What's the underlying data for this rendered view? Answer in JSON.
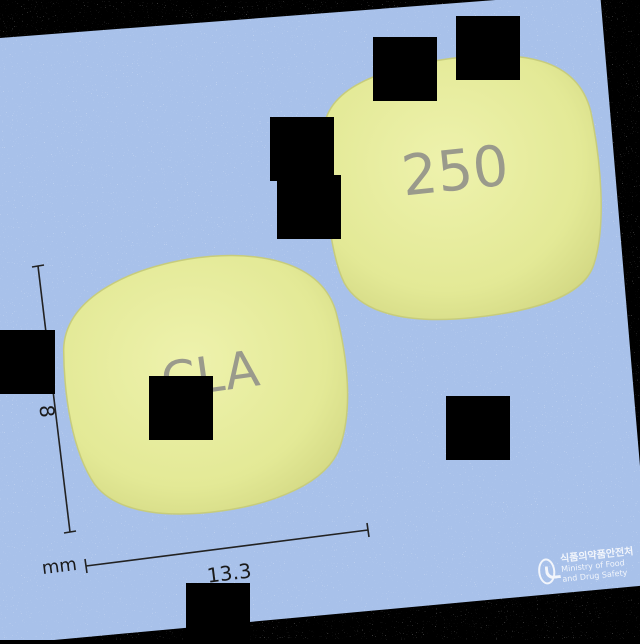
{
  "pill": {
    "front_imprint": "CLA",
    "back_imprint": "250",
    "color": "#e6ec9a",
    "imprint_color": "#9a9a8c"
  },
  "measurements": {
    "unit": "mm",
    "length": "13.3",
    "width": "8"
  },
  "watermark": {
    "korean": "식품의약품안전처",
    "english": "Ministry of Food and Drug Safety"
  },
  "colors": {
    "background": "#a8c1ea",
    "frame": "#000000"
  }
}
